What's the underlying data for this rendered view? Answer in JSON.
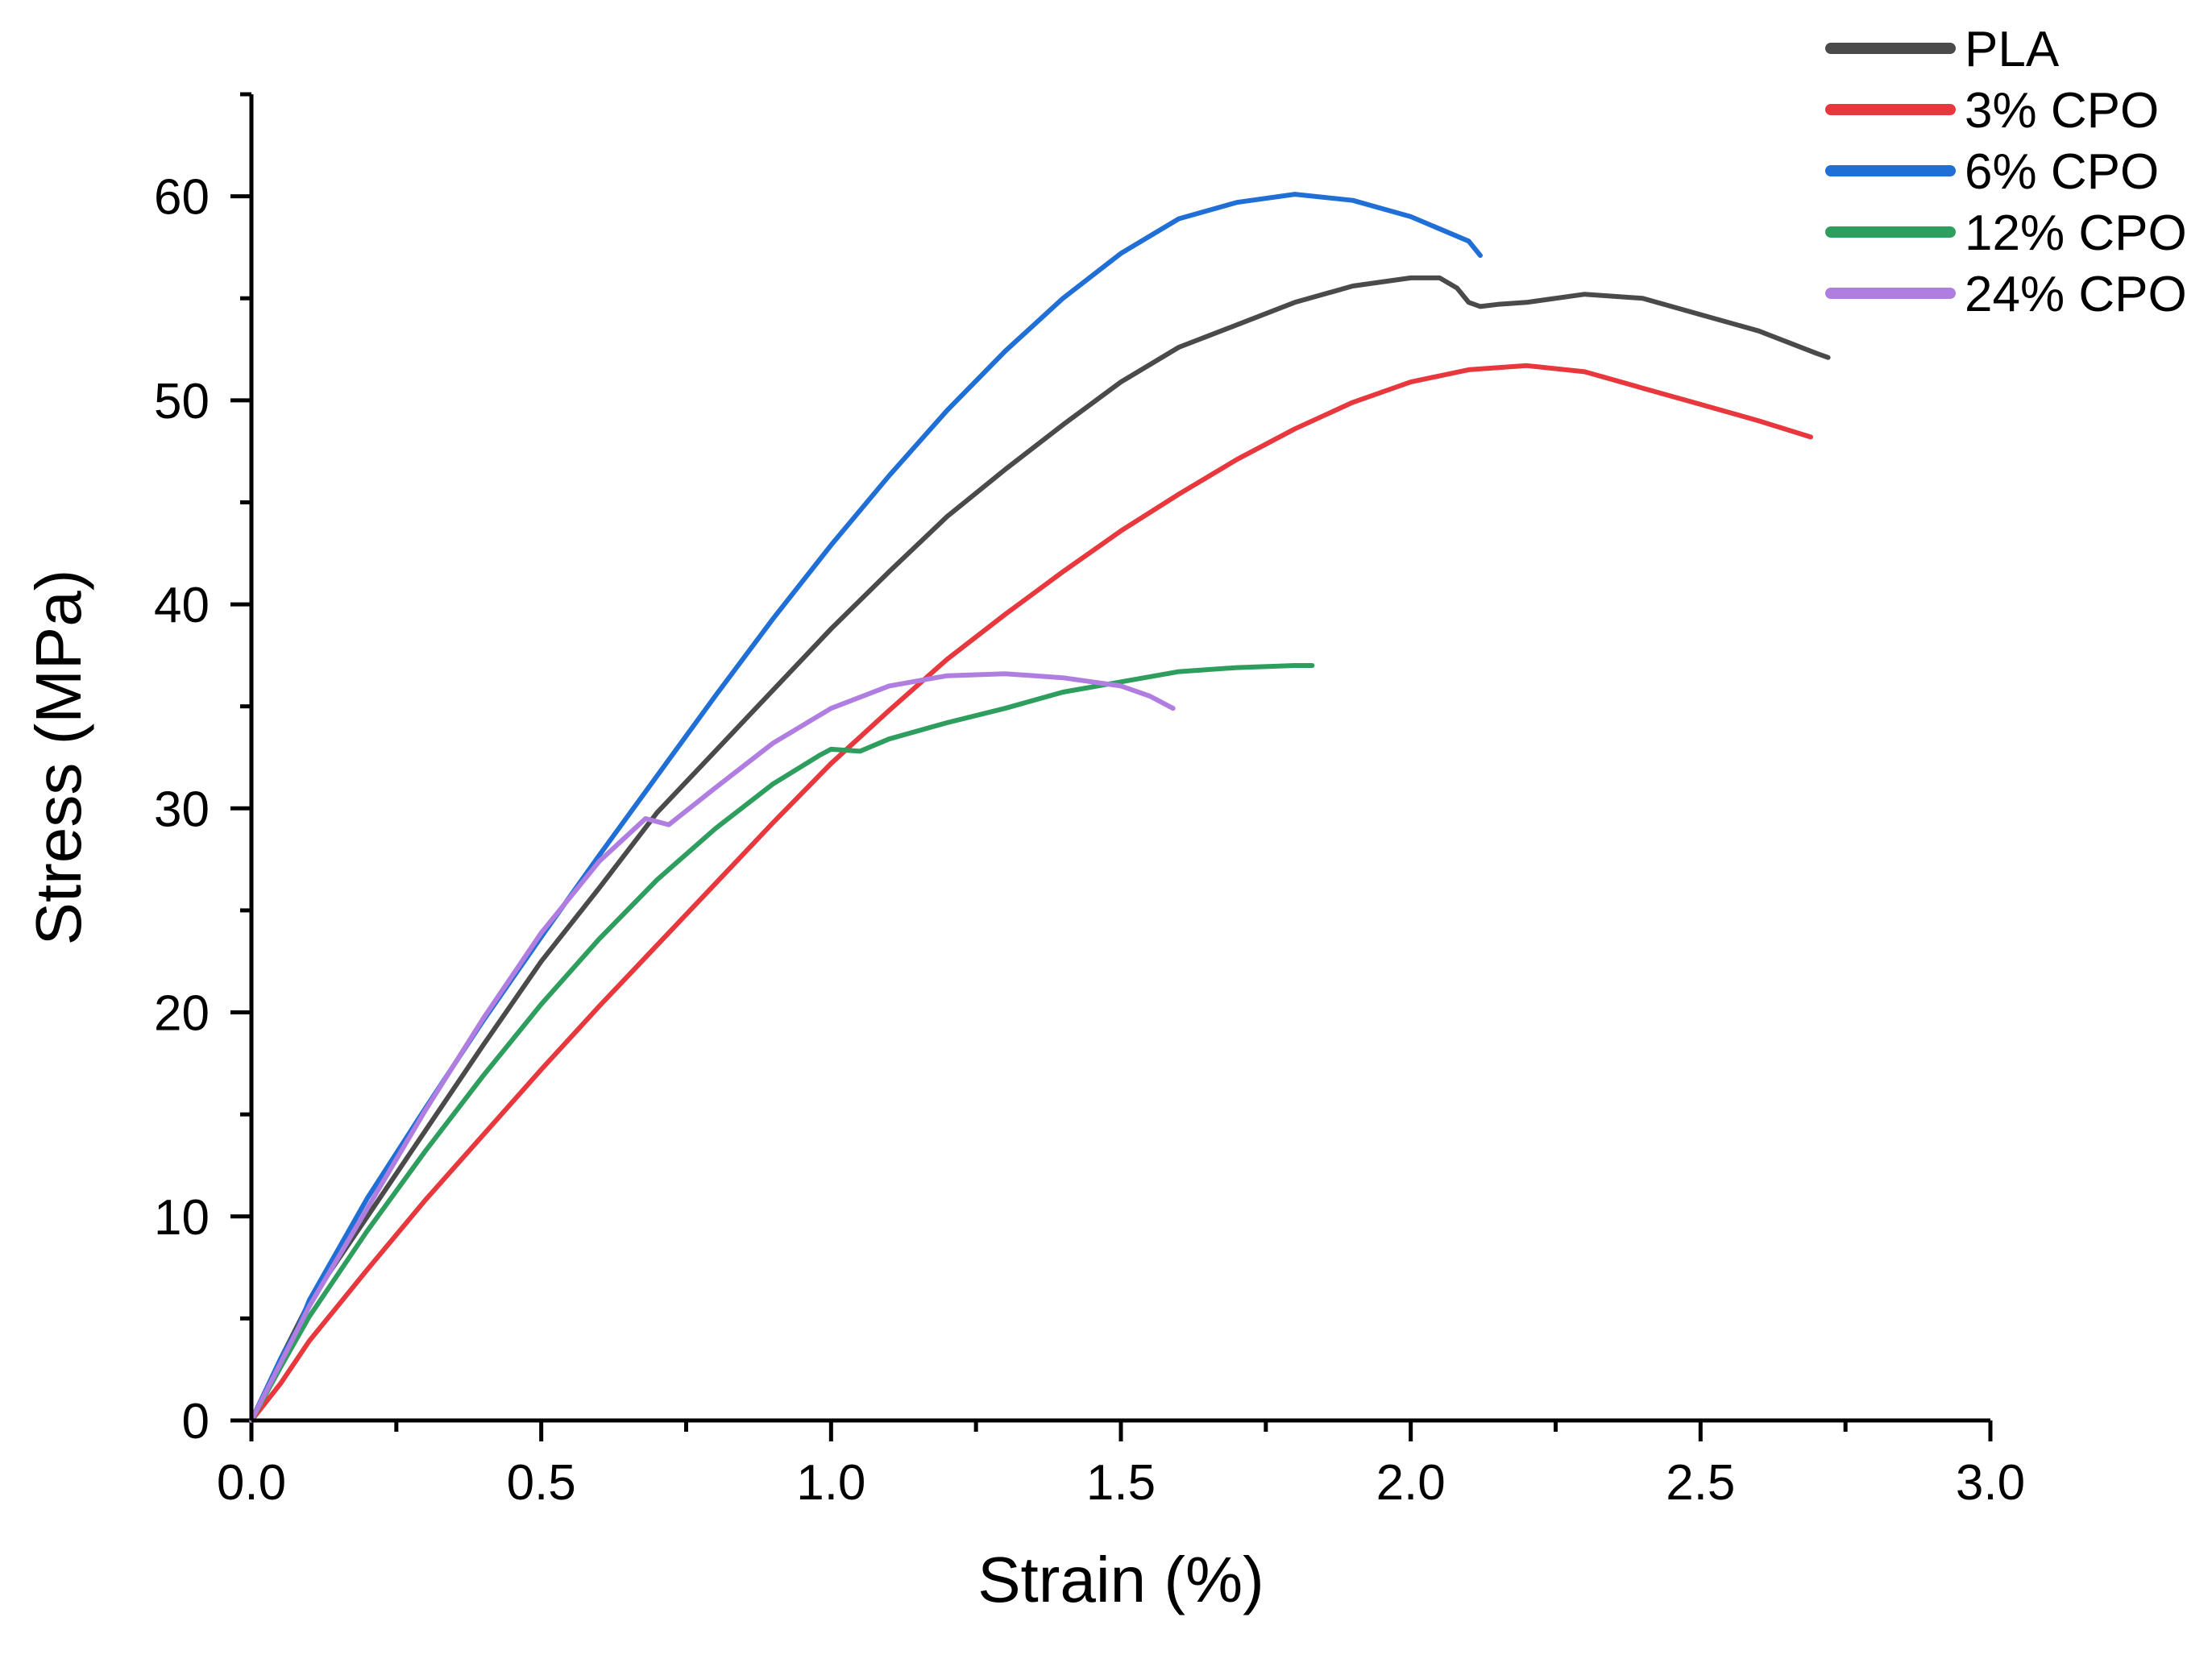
{
  "chart_data": {
    "type": "line",
    "title": "",
    "xlabel": "Strain (%)",
    "ylabel": "Stress (MPa)",
    "xlim": [
      0,
      3.0
    ],
    "ylim": [
      0,
      65
    ],
    "x_ticks": [
      0.0,
      0.5,
      1.0,
      1.5,
      2.0,
      2.5,
      3.0
    ],
    "x_tick_labels": [
      "0.0",
      "0.5",
      "1.0",
      "1.5",
      "2.0",
      "2.5",
      "3.0"
    ],
    "y_ticks": [
      0,
      10,
      20,
      30,
      40,
      50,
      60
    ],
    "y_tick_labels": [
      "0",
      "10",
      "20",
      "30",
      "40",
      "50",
      "60"
    ],
    "grid": false,
    "legend_position": "top-right",
    "series": [
      {
        "name": "PLA",
        "color": "#4a4a4a",
        "x": [
          0,
          0.05,
          0.1,
          0.2,
          0.3,
          0.4,
          0.5,
          0.6,
          0.7,
          0.8,
          0.9,
          1.0,
          1.1,
          1.2,
          1.3,
          1.4,
          1.5,
          1.6,
          1.7,
          1.8,
          1.9,
          2.0,
          2.05,
          2.08,
          2.1,
          2.12,
          2.15,
          2.2,
          2.3,
          2.4,
          2.5,
          2.6,
          2.7,
          2.72
        ],
        "y": [
          0,
          3.0,
          5.8,
          10.0,
          14.2,
          18.4,
          22.5,
          26.1,
          29.8,
          32.8,
          35.8,
          38.8,
          41.6,
          44.3,
          46.6,
          48.8,
          50.9,
          52.6,
          53.7,
          54.8,
          55.6,
          56.0,
          56.0,
          55.5,
          54.8,
          54.6,
          54.7,
          54.8,
          55.2,
          55.0,
          54.2,
          53.4,
          52.3,
          52.1
        ]
      },
      {
        "name": "3% CPO",
        "color": "#e8383d",
        "x": [
          0,
          0.05,
          0.1,
          0.2,
          0.3,
          0.4,
          0.5,
          0.6,
          0.7,
          0.8,
          0.9,
          1.0,
          1.1,
          1.2,
          1.3,
          1.4,
          1.5,
          1.6,
          1.7,
          1.8,
          1.9,
          2.0,
          2.1,
          2.2,
          2.3,
          2.4,
          2.5,
          2.6,
          2.69
        ],
        "y": [
          0,
          1.8,
          3.9,
          7.4,
          10.8,
          14.0,
          17.2,
          20.3,
          23.3,
          26.3,
          29.3,
          32.2,
          34.8,
          37.3,
          39.5,
          41.6,
          43.6,
          45.4,
          47.1,
          48.6,
          49.9,
          50.9,
          51.5,
          51.7,
          51.4,
          50.6,
          49.8,
          49.0,
          48.2
        ]
      },
      {
        "name": "6% CPO",
        "color": "#1f6fd6",
        "x": [
          0,
          0.05,
          0.08,
          0.1,
          0.2,
          0.3,
          0.4,
          0.5,
          0.6,
          0.7,
          0.8,
          0.9,
          1.0,
          1.1,
          1.2,
          1.3,
          1.4,
          1.5,
          1.6,
          1.7,
          1.8,
          1.9,
          2.0,
          2.1,
          2.12
        ],
        "y": [
          0,
          3.0,
          4.5,
          5.9,
          10.9,
          15.3,
          19.6,
          23.7,
          27.7,
          31.6,
          35.5,
          39.3,
          42.9,
          46.3,
          49.5,
          52.4,
          55.0,
          57.2,
          58.9,
          59.7,
          60.1,
          59.8,
          59.0,
          57.8,
          57.1
        ]
      },
      {
        "name": "12% CPO",
        "color": "#2e9e5e",
        "x": [
          0,
          0.05,
          0.1,
          0.2,
          0.3,
          0.4,
          0.5,
          0.6,
          0.7,
          0.8,
          0.9,
          0.98,
          1.0,
          1.05,
          1.1,
          1.2,
          1.3,
          1.4,
          1.5,
          1.6,
          1.7,
          1.8,
          1.83
        ],
        "y": [
          0,
          2.6,
          5.1,
          9.3,
          13.2,
          16.9,
          20.4,
          23.6,
          26.5,
          29.0,
          31.2,
          32.6,
          32.9,
          32.8,
          33.4,
          34.2,
          34.9,
          35.7,
          36.2,
          36.7,
          36.9,
          37.0,
          37.0
        ]
      },
      {
        "name": "24% CPO",
        "color": "#b07ee0",
        "x": [
          0,
          0.05,
          0.1,
          0.2,
          0.3,
          0.4,
          0.5,
          0.6,
          0.68,
          0.72,
          0.8,
          0.9,
          1.0,
          1.1,
          1.2,
          1.3,
          1.4,
          1.5,
          1.55,
          1.59
        ],
        "y": [
          0,
          2.8,
          5.6,
          10.4,
          15.2,
          19.7,
          23.9,
          27.4,
          29.5,
          29.2,
          31.0,
          33.2,
          34.9,
          36.0,
          36.5,
          36.6,
          36.4,
          36.0,
          35.5,
          34.9
        ]
      }
    ]
  }
}
